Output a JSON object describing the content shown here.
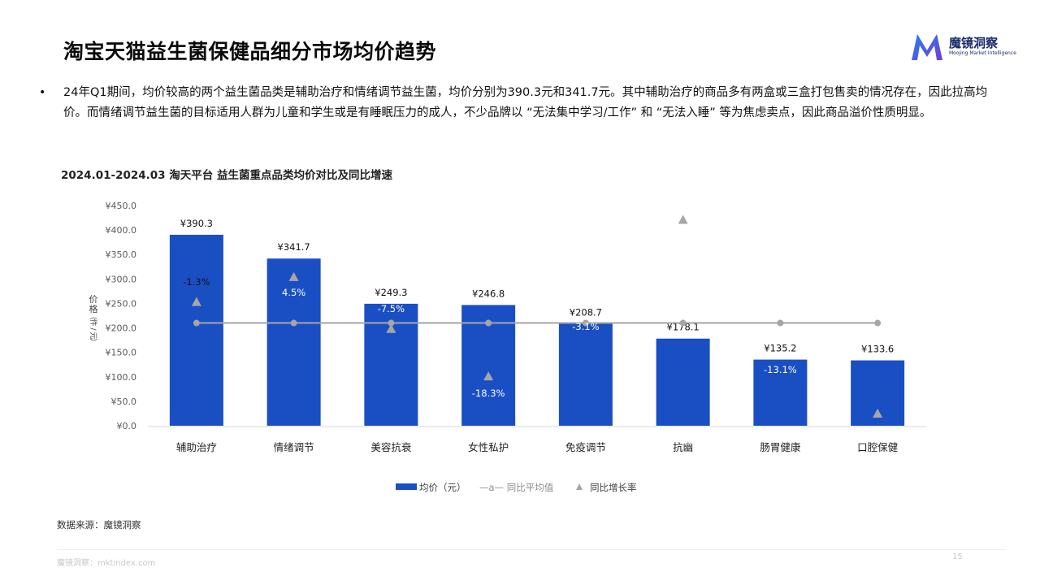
{
  "header": {
    "title": "淘宝天猫益生菌保健品细分市场均价趋势",
    "logo_text": "魔镜洞察",
    "logo_sub": "Moojing Market Intelligence"
  },
  "summary": {
    "bullet": "•",
    "text": "24年Q1期间，均价较高的两个益生菌品类是辅助治疗和情绪调节益生菌，均价分别为390.3元和341.7元。其中辅助治疗的商品多有两盒或三盒打包售卖的情况存在，因此拉高均价。而情绪调节益生菌的目标适用人群为儿童和学生或是有睡眠压力的成人，不少品牌以 “无法集中学习/工作” 和 “无法入睡” 等为焦虑卖点，因此商品溢价性质明显。"
  },
  "chart_data": {
    "type": "bar",
    "title": "2024.01-2024.03 淘天平台 益生菌重点品类均价对比及同比增速",
    "ylabel": "价格（件/元）",
    "ylim": [
      0,
      450
    ],
    "yticks": [
      "¥0.0",
      "¥50.0",
      "¥100.0",
      "¥150.0",
      "¥200.0",
      "¥250.0",
      "¥300.0",
      "¥350.0",
      "¥400.0",
      "¥450.0"
    ],
    "categories": [
      "辅助治疗",
      "情绪调节",
      "美容抗衰",
      "女性私护",
      "免疫调节",
      "抗幽",
      "肠胃健康",
      "口腔保健"
    ],
    "series": [
      {
        "name": "均价（元）",
        "type": "bar",
        "color": "#1a4fc4",
        "values": [
          390.3,
          341.7,
          249.3,
          246.8,
          208.7,
          178.1,
          135.2,
          133.6
        ],
        "labels": [
          "¥390.3",
          "¥341.7",
          "¥249.3",
          "¥246.8",
          "¥208.7",
          "¥178.1",
          "¥135.2",
          "¥133.6"
        ]
      },
      {
        "name": "同比平均值",
        "type": "line",
        "color": "#a6a6a6",
        "values": [
          210,
          210,
          210,
          210,
          210,
          210,
          210,
          210
        ]
      },
      {
        "name": "同比增长率",
        "type": "scatter",
        "marker": "triangle",
        "color": "#a6a6a6",
        "values": [
          -1.3,
          4.5,
          -7.5,
          -18.3,
          -3.1,
          null,
          -13.1,
          null
        ],
        "labels": [
          "-1.3%",
          "4.5%",
          "-7.5%",
          "-18.3%",
          "-3.1%",
          "",
          "-13.1%",
          ""
        ],
        "y_positions": [
          253,
          304,
          198,
          101,
          null,
          421,
          null,
          25
        ]
      }
    ],
    "legend": {
      "placement": "bottom",
      "items": [
        "均价（元）",
        "—a— 同比平均值",
        "同比增长率"
      ]
    }
  },
  "footer": {
    "source": "数据来源：魔镜洞察",
    "site": "魔镜洞察：mktindex.com",
    "page": "15"
  }
}
